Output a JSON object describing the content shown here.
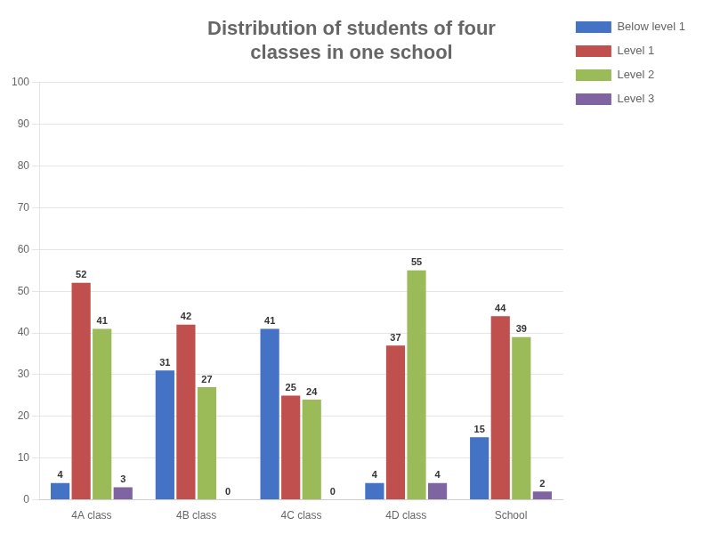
{
  "chart_data": {
    "type": "bar",
    "title": "Distribution of students of four\nclasses in one school",
    "categories": [
      "4A class",
      "4B class",
      "4C class",
      "4D class",
      "School"
    ],
    "series": [
      {
        "name": "Below level 1",
        "color": "#4472c4",
        "values": [
          4,
          31,
          41,
          4,
          15
        ]
      },
      {
        "name": "Level 1",
        "color": "#c0504d",
        "values": [
          52,
          42,
          25,
          37,
          44
        ]
      },
      {
        "name": "Level 2",
        "color": "#9bbb59",
        "values": [
          41,
          27,
          24,
          55,
          39
        ]
      },
      {
        "name": "Level 3",
        "color": "#8064a2",
        "values": [
          3,
          0,
          0,
          4,
          2
        ]
      }
    ],
    "ylim": [
      0,
      100
    ],
    "yticks": [
      0,
      10,
      20,
      30,
      40,
      50,
      60,
      70,
      80,
      90,
      100
    ],
    "grid": "y",
    "legend": "right",
    "data_labels": true
  }
}
